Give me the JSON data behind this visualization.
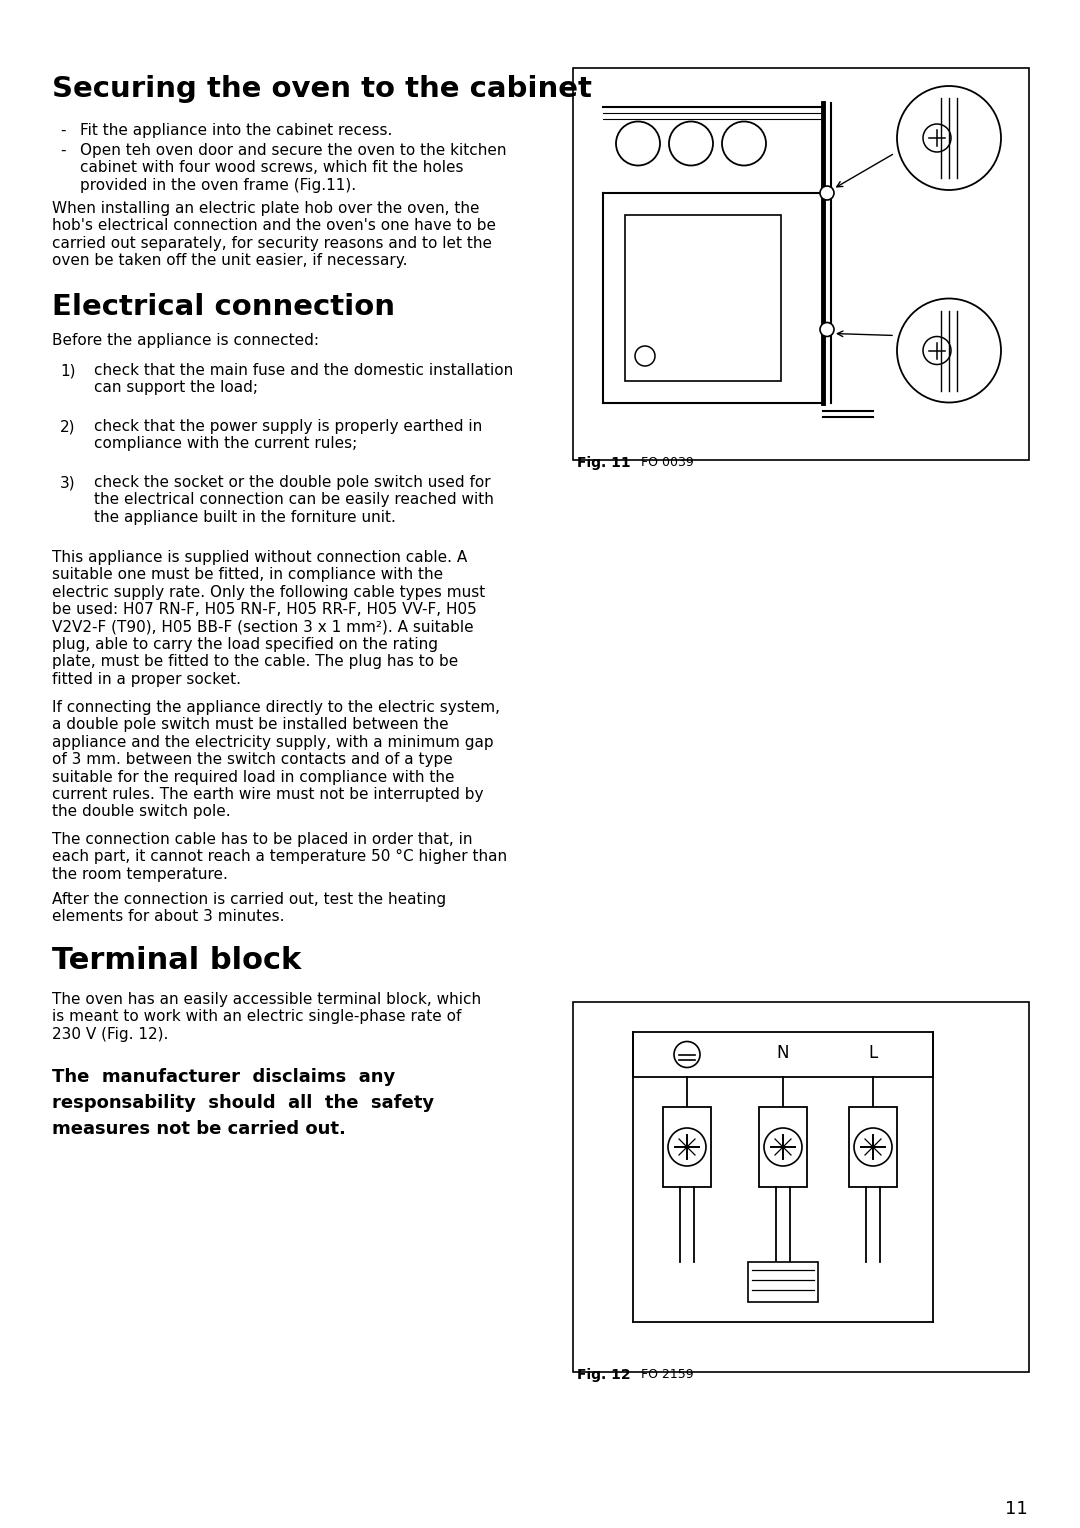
{
  "bg_color": "#ffffff",
  "text_color": "#000000",
  "page_number": "11",
  "section1_title": "Securing the oven to the cabinet",
  "section1_bullet1": "Fit the appliance into the cabinet recess.",
  "section1_bullet2": "Open teh oven door and secure the oven to the kitchen\ncabinet with four wood screws, which fit the holes\nprovided in the oven frame (Fig.11).",
  "section1_para": "When installing an electric plate hob over the oven, the\nhob's electrical connection and the oven's one have to be\ncarried out separately, for security reasons and to let the\noven be taken off the unit easier, if necessary.",
  "section2_title": "Electrical connection",
  "section2_before": "Before the appliance is connected:",
  "section2_item1": "check that the main fuse and the domestic installation\ncan support the load;",
  "section2_item2": "check that the power supply is properly earthed in\ncompliance with the current rules;",
  "section2_item3": "check the socket or the double pole switch used for\nthe electrical connection can be easily reached with\nthe appliance built in the forniture unit.",
  "section2_para1": "This appliance is supplied without connection cable. A\nsuitable one must be fitted, in compliance with the\nelectric supply rate. Only the following cable types must\nbe used: H07 RN-F, H05 RN-F, H05 RR-F, H05 VV-F, H05\nV2V2-F (T90), H05 BB-F (section 3 x 1 mm²). A suitable\nplug, able to carry the load specified on the rating\nplate, must be fitted to the cable. The plug has to be\nfitted in a proper socket.",
  "section2_para2": "If connecting the appliance directly to the electric system,\na double pole switch must be installed between the\nappliance and the electricity supply, with a minimum gap\nof 3 mm. between the switch contacts and of a type\nsuitable for the required load in compliance with the\ncurrent rules. The earth wire must not be interrupted by\nthe double switch pole.",
  "section2_para3": "The connection cable has to be placed in order that, in\neach part, it cannot reach a temperature 50 °C higher than\nthe room temperature.",
  "section2_para4": "After the connection is carried out, test the heating\nelements for about 3 minutes.",
  "section3_title": "Terminal block",
  "section3_para": "The oven has an easily accessible terminal block, which\nis meant to work with an electric single-phase rate of\n230 V (Fig. 12).",
  "section3_bold_line1": "The  manufacturer  disclaims  any",
  "section3_bold_line2": "responsability  should  all  the  safety",
  "section3_bold_line3": "measures not be carried out.",
  "fig11_label": "Fig. 11",
  "fig11_code": "FO 0039",
  "fig12_label": "Fig. 12",
  "fig12_code": "FO 2159"
}
